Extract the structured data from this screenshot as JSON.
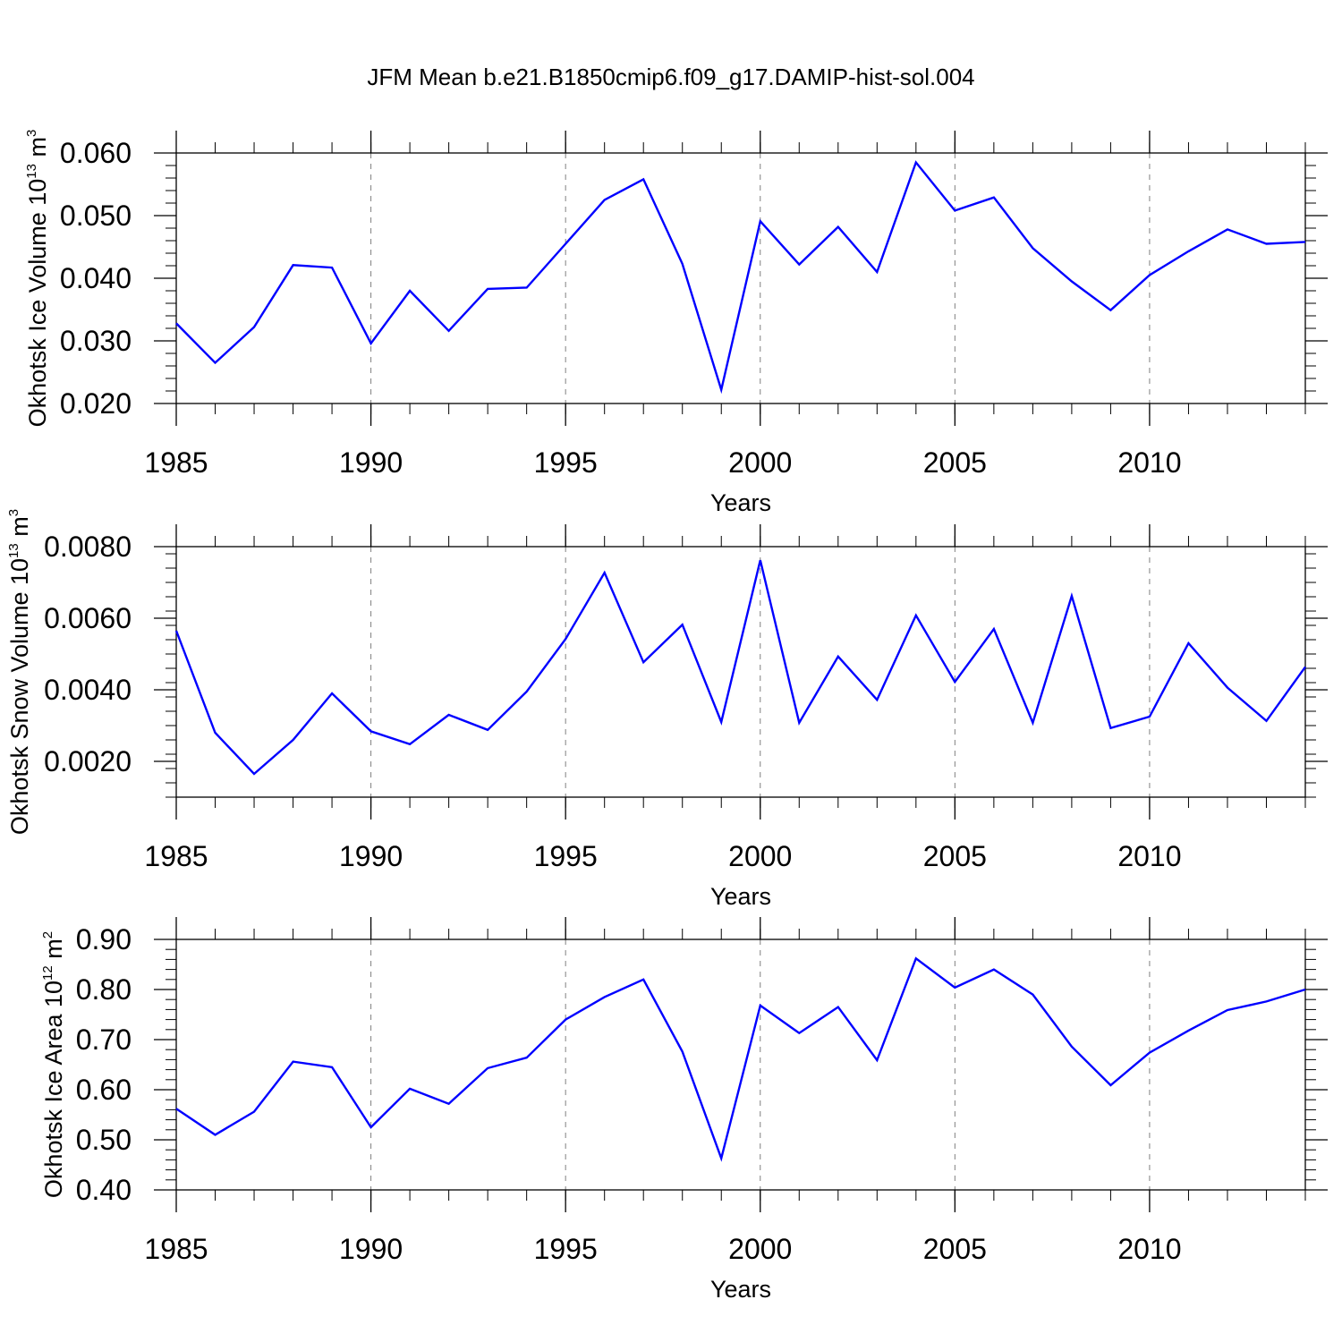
{
  "title": "JFM Mean b.e21.B1850cmip6.f09_g17.DAMIP-hist-sol.004",
  "line_color": "#0000ff",
  "chart_data": [
    {
      "type": "line",
      "xlabel": "Years",
      "ylabel_main": "Okhotsk Ice Volume 10",
      "ylabel_exp": "13",
      "ylabel_unit": " m",
      "ylabel_unit_exp": "3",
      "xlim": [
        1985,
        2014
      ],
      "ylim": [
        0.02,
        0.06
      ],
      "x_ticks": [
        "1985",
        "1990",
        "1995",
        "2000",
        "2005",
        "2010"
      ],
      "y_ticks": [
        "0.020",
        "0.030",
        "0.040",
        "0.050",
        "0.060"
      ],
      "grid_x": true,
      "x": [
        1985,
        1986,
        1987,
        1988,
        1989,
        1990,
        1991,
        1992,
        1993,
        1994,
        1995,
        1996,
        1997,
        1998,
        1999,
        2000,
        2001,
        2002,
        2003,
        2004,
        2005,
        2006,
        2007,
        2008,
        2009,
        2010,
        2011,
        2012,
        2013,
        2014
      ],
      "series": [
        {
          "values": [
            0.0328,
            0.0265,
            0.0322,
            0.0421,
            0.0417,
            0.0296,
            0.038,
            0.0316,
            0.0383,
            0.0385,
            0.0455,
            0.0525,
            0.0558,
            0.0423,
            0.0222,
            0.0491,
            0.0422,
            0.0482,
            0.041,
            0.0585,
            0.0508,
            0.0529,
            0.0448,
            0.0395,
            0.0349,
            0.0405,
            0.0443,
            0.0478,
            0.0455,
            0.0458
          ]
        }
      ]
    },
    {
      "type": "line",
      "xlabel": "Years",
      "ylabel_main": "Okhotsk Snow Volume 10",
      "ylabel_exp": "13",
      "ylabel_unit": " m",
      "ylabel_unit_exp": "3",
      "xlim": [
        1985,
        2014
      ],
      "ylim": [
        0.001,
        0.008
      ],
      "x_ticks": [
        "1985",
        "1990",
        "1995",
        "2000",
        "2005",
        "2010"
      ],
      "y_ticks": [
        "0.0020",
        "0.0040",
        "0.0060",
        "0.0080"
      ],
      "grid_x": true,
      "x": [
        1985,
        1986,
        1987,
        1988,
        1989,
        1990,
        1991,
        1992,
        1993,
        1994,
        1995,
        1996,
        1997,
        1998,
        1999,
        2000,
        2001,
        2002,
        2003,
        2004,
        2005,
        2006,
        2007,
        2008,
        2009,
        2010,
        2011,
        2012,
        2013,
        2014
      ],
      "series": [
        {
          "values": [
            0.00565,
            0.0028,
            0.00165,
            0.0026,
            0.0039,
            0.00284,
            0.00248,
            0.0033,
            0.00288,
            0.00395,
            0.00542,
            0.00727,
            0.00477,
            0.00582,
            0.0031,
            0.00762,
            0.00308,
            0.00493,
            0.00372,
            0.00608,
            0.00422,
            0.0057,
            0.00308,
            0.00662,
            0.00293,
            0.00325,
            0.0053,
            0.00406,
            0.00313,
            0.00464
          ]
        }
      ]
    },
    {
      "type": "line",
      "xlabel": "Years",
      "ylabel_main": "Okhotsk Ice Area 10",
      "ylabel_exp": "12",
      "ylabel_unit": " m",
      "ylabel_unit_exp": "2",
      "xlim": [
        1985,
        2014
      ],
      "ylim": [
        0.4,
        0.9
      ],
      "x_ticks": [
        "1985",
        "1990",
        "1995",
        "2000",
        "2005",
        "2010"
      ],
      "y_ticks": [
        "0.40",
        "0.50",
        "0.60",
        "0.70",
        "0.80",
        "0.90"
      ],
      "grid_x": true,
      "x": [
        1985,
        1986,
        1987,
        1988,
        1989,
        1990,
        1991,
        1992,
        1993,
        1994,
        1995,
        1996,
        1997,
        1998,
        1999,
        2000,
        2001,
        2002,
        2003,
        2004,
        2005,
        2006,
        2007,
        2008,
        2009,
        2010,
        2011,
        2012,
        2013,
        2014
      ],
      "series": [
        {
          "values": [
            0.562,
            0.51,
            0.556,
            0.656,
            0.645,
            0.525,
            0.602,
            0.572,
            0.643,
            0.664,
            0.74,
            0.785,
            0.82,
            0.676,
            0.463,
            0.768,
            0.713,
            0.765,
            0.659,
            0.862,
            0.804,
            0.84,
            0.79,
            0.686,
            0.609,
            0.674,
            0.718,
            0.759,
            0.776,
            0.8
          ]
        }
      ]
    }
  ]
}
